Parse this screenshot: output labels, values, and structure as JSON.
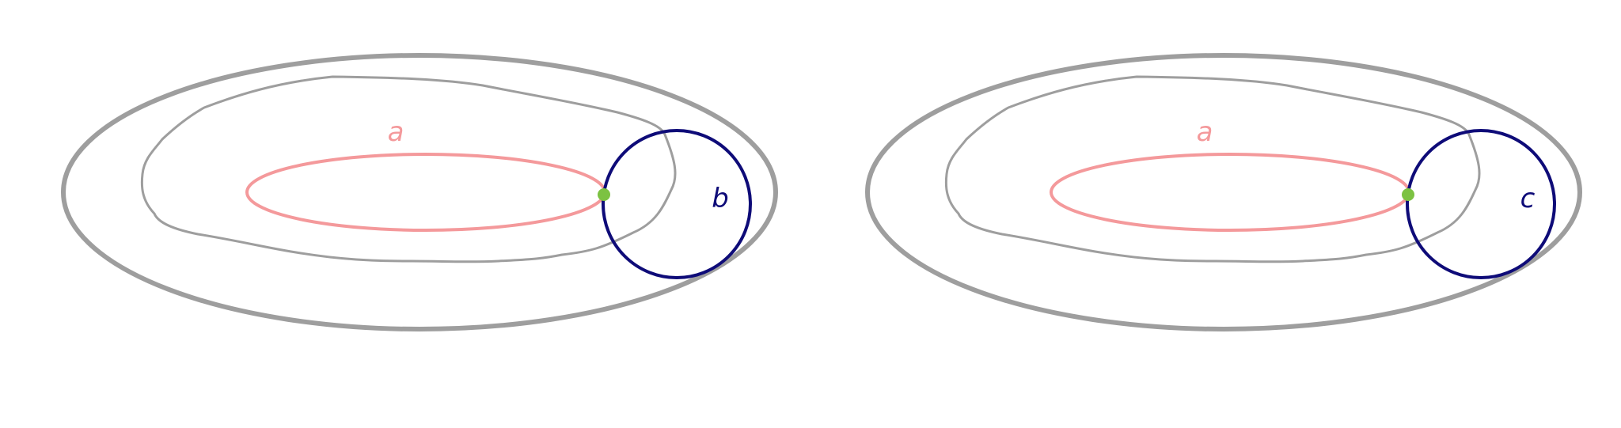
{
  "colors": {
    "outline": "#9e9e9e",
    "curve_a": "#f4999b",
    "curve_b": "#0e0b78",
    "basepoint": "#7cc242",
    "background": "#ffffff"
  },
  "panels": [
    {
      "label_a": "a",
      "label_second": "b",
      "second_curve_color": "#0e0b78"
    },
    {
      "label_a": "a",
      "label_second": "c",
      "second_curve_color": "#0e0b78"
    }
  ]
}
